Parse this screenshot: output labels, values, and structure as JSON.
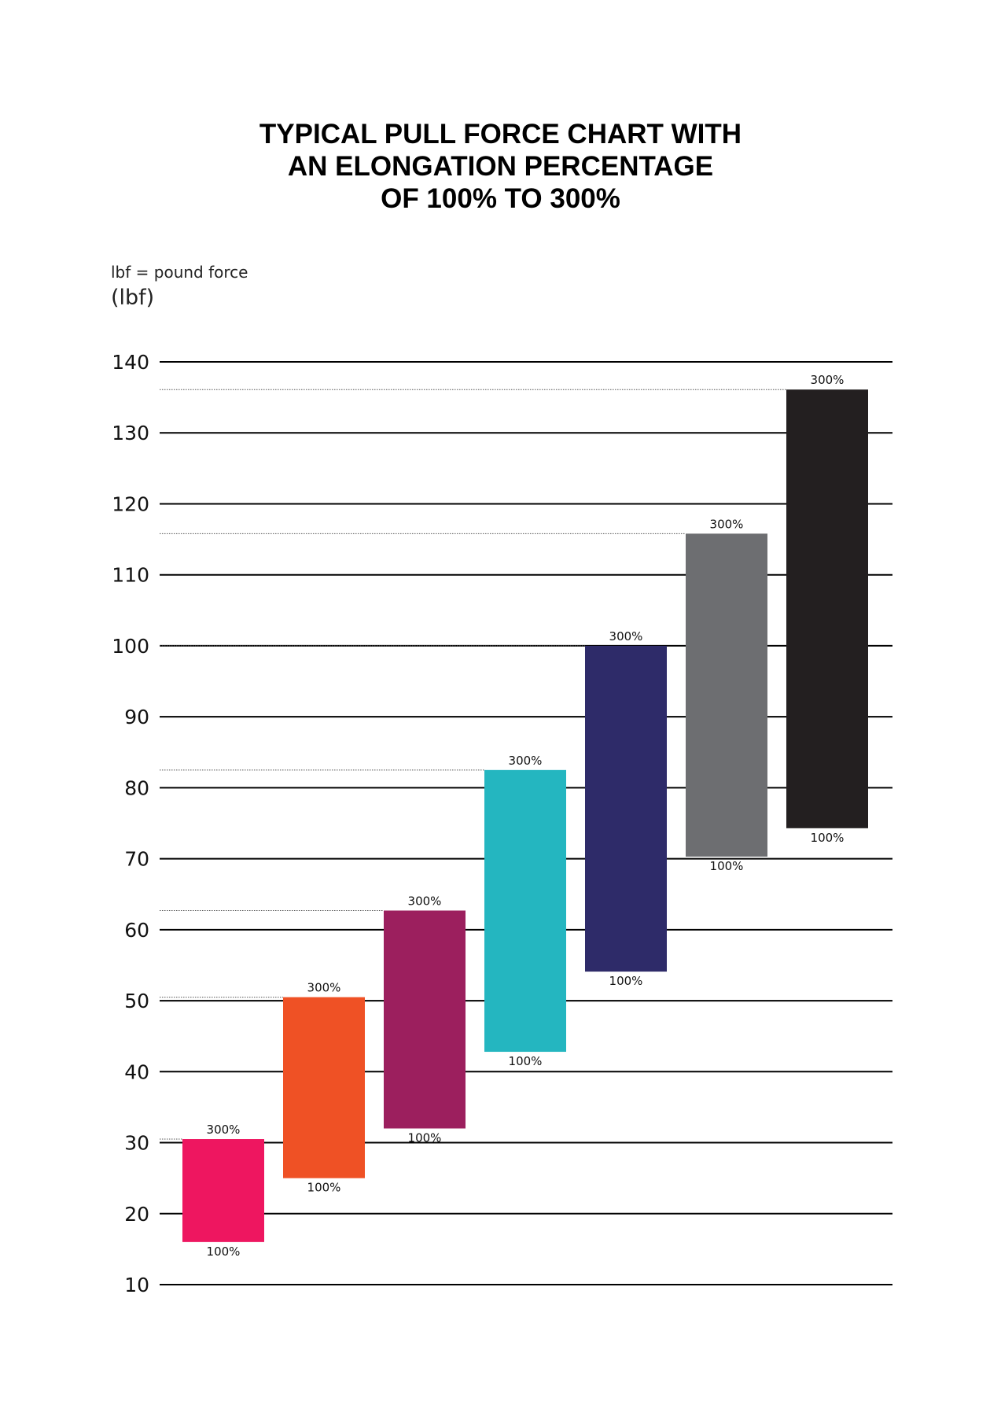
{
  "title_lines": [
    "TYPICAL PULL FORCE CHART WITH",
    "AN ELONGATION PERCENTAGE",
    "OF 100% TO 300%"
  ],
  "note": "lbf = pound force",
  "unit_label": "(lbf)",
  "chart_data": {
    "type": "bar",
    "title": "TYPICAL PULL FORCE CHART WITH AN ELONGATION PERCENTAGE OF 100% TO 300%",
    "ylabel": "(lbf)",
    "ylim": [
      10,
      140
    ],
    "yticks": [
      10,
      20,
      30,
      40,
      50,
      60,
      70,
      80,
      90,
      100,
      110,
      120,
      130,
      140
    ],
    "grid": true,
    "bar_labels": {
      "low": "100%",
      "high": "300%"
    },
    "bars": [
      {
        "low": 16,
        "high": 30.5,
        "color": "#EE1660"
      },
      {
        "low": 25,
        "high": 50.5,
        "color": "#EF5125"
      },
      {
        "low": 32,
        "high": 62.7,
        "color": "#9C1F5E"
      },
      {
        "low": 42.8,
        "high": 82.5,
        "color": "#24B6C0"
      },
      {
        "low": 54.1,
        "high": 100,
        "color": "#2E2B69"
      },
      {
        "low": 70.3,
        "high": 115.8,
        "color": "#6D6E71"
      },
      {
        "low": 74.3,
        "high": 136.1,
        "color": "#231F20"
      }
    ]
  }
}
